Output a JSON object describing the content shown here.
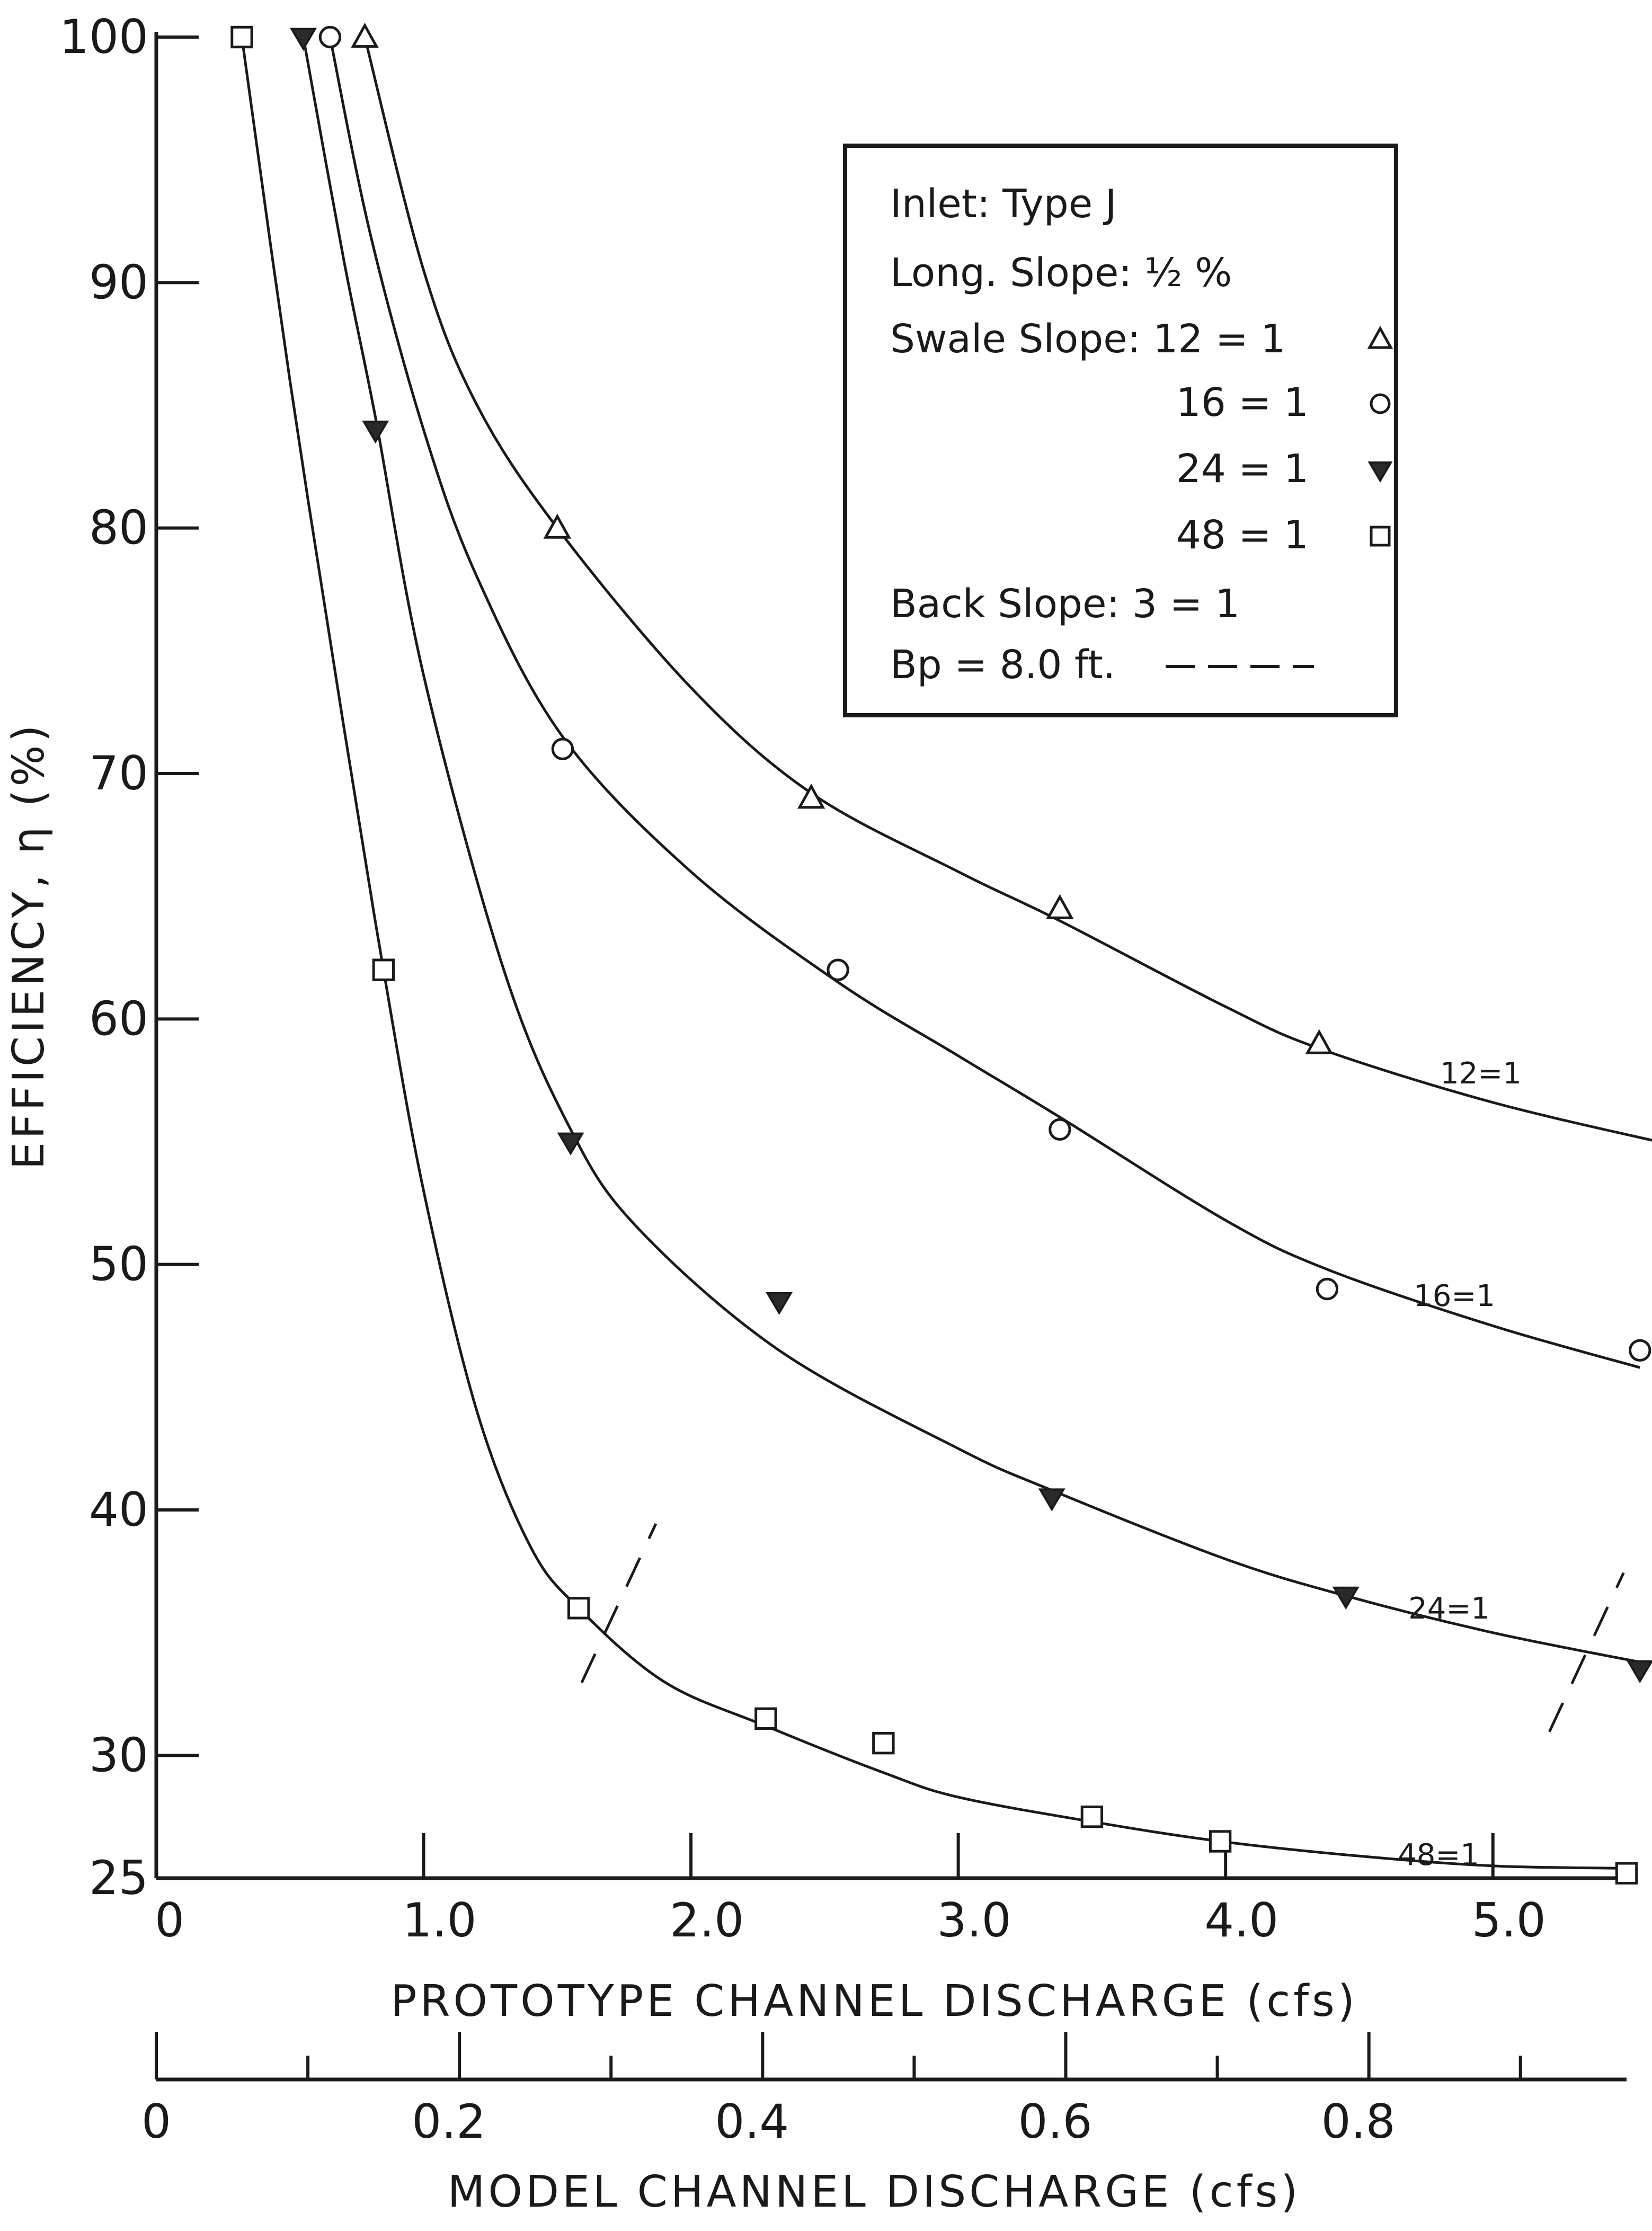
{
  "chart_data": {
    "type": "scatter",
    "ylabel": "EFFICIENCY, η (%)",
    "xlabel": "PROTOTYPE CHANNEL DISCHARGE (cfs)",
    "x2label": "MODEL CHANNEL DISCHARGE (cfs)",
    "xlim": [
      0,
      5.5
    ],
    "ylim": [
      25,
      100
    ],
    "x2lim": [
      0,
      0.97
    ],
    "y_ticks": [
      "100",
      "90",
      "80",
      "70",
      "60",
      "50",
      "40",
      "30",
      "25"
    ],
    "y_tick_values": [
      100,
      90,
      80,
      70,
      60,
      50,
      40,
      30,
      25
    ],
    "x_ticks": [
      "0",
      "1.0",
      "2.0",
      "3.0",
      "4.0",
      "5.0"
    ],
    "x_tick_values": [
      0,
      1,
      2,
      3,
      4,
      5
    ],
    "x2_ticks": [
      "0",
      "0.2",
      "0.4",
      "0.6",
      "0.8"
    ],
    "x2_tick_values": [
      0,
      0.2,
      0.4,
      0.6,
      0.8
    ],
    "legend": {
      "lines": [
        "Inlet:  Type J",
        "Long. Slope: ½ %",
        "Swale Slope: 12 = 1",
        "16 = 1",
        "24 = 1",
        "48 = 1",
        "Back  Slope:   3 = 1",
        "Bp = 8.0 ft."
      ]
    },
    "series": [
      {
        "name": "12 = 1",
        "curve_label": "12=1",
        "marker": "triangle-open",
        "points": [
          [
            0.78,
            100
          ],
          [
            1.5,
            80
          ],
          [
            2.45,
            69
          ],
          [
            3.38,
            64.5
          ],
          [
            4.35,
            59
          ],
          [
            5.7,
            55.5
          ]
        ],
        "curve": [
          [
            0.78,
            100
          ],
          [
            1.0,
            90.5
          ],
          [
            1.2,
            85
          ],
          [
            1.5,
            80
          ],
          [
            2.0,
            73.5
          ],
          [
            2.45,
            69.2
          ],
          [
            3.0,
            66
          ],
          [
            3.38,
            64
          ],
          [
            4.0,
            60.5
          ],
          [
            4.35,
            58.8
          ],
          [
            5.0,
            56.6
          ],
          [
            5.7,
            54.8
          ]
        ]
      },
      {
        "name": "16 = 1",
        "curve_label": "16=1",
        "marker": "circle-open",
        "points": [
          [
            0.65,
            100
          ],
          [
            1.52,
            71
          ],
          [
            2.55,
            62
          ],
          [
            3.38,
            55.5
          ],
          [
            4.38,
            49
          ],
          [
            5.55,
            46.5
          ]
        ],
        "curve": [
          [
            0.65,
            100
          ],
          [
            0.8,
            92
          ],
          [
            1.0,
            84
          ],
          [
            1.2,
            78
          ],
          [
            1.52,
            71.5
          ],
          [
            2.0,
            66
          ],
          [
            2.55,
            61.5
          ],
          [
            3.0,
            58.5
          ],
          [
            3.38,
            56
          ],
          [
            4.0,
            51.8
          ],
          [
            4.38,
            49.8
          ],
          [
            5.0,
            47.5
          ],
          [
            5.55,
            45.8
          ]
        ]
      },
      {
        "name": "24 = 1",
        "curve_label": "24=1",
        "marker": "triangle-filled",
        "points": [
          [
            0.55,
            100
          ],
          [
            0.82,
            84
          ],
          [
            1.55,
            55
          ],
          [
            2.33,
            48.5
          ],
          [
            3.35,
            40.5
          ],
          [
            4.45,
            36.5
          ],
          [
            5.55,
            33.5
          ]
        ],
        "curve": [
          [
            0.55,
            100
          ],
          [
            0.7,
            91
          ],
          [
            0.82,
            84.5
          ],
          [
            1.0,
            74
          ],
          [
            1.3,
            62
          ],
          [
            1.55,
            55.5
          ],
          [
            1.8,
            51.5
          ],
          [
            2.33,
            46.5
          ],
          [
            3.0,
            42.5
          ],
          [
            3.35,
            40.8
          ],
          [
            4.0,
            38
          ],
          [
            4.45,
            36.5
          ],
          [
            5.0,
            35
          ],
          [
            5.55,
            33.8
          ]
        ]
      },
      {
        "name": "48 = 1",
        "curve_label": "48=1",
        "marker": "square-open",
        "points": [
          [
            0.32,
            100
          ],
          [
            0.85,
            62
          ],
          [
            1.58,
            36
          ],
          [
            2.28,
            31.5
          ],
          [
            2.72,
            30.5
          ],
          [
            3.5,
            27.5
          ],
          [
            3.98,
            26.5
          ],
          [
            5.5,
            25.2
          ]
        ],
        "curve": [
          [
            0.32,
            100
          ],
          [
            0.5,
            86
          ],
          [
            0.7,
            72
          ],
          [
            0.85,
            62
          ],
          [
            1.0,
            53
          ],
          [
            1.2,
            44
          ],
          [
            1.4,
            38.5
          ],
          [
            1.58,
            36
          ],
          [
            1.9,
            33
          ],
          [
            2.28,
            31.2
          ],
          [
            2.72,
            29.3
          ],
          [
            3.0,
            28.3
          ],
          [
            3.5,
            27.3
          ],
          [
            3.98,
            26.5
          ],
          [
            4.5,
            25.9
          ],
          [
            5.0,
            25.5
          ],
          [
            5.5,
            25.4
          ]
        ]
      }
    ],
    "bp_marks": [
      [
        1.73,
        36.2
      ],
      [
        5.35,
        34.2
      ]
    ]
  }
}
